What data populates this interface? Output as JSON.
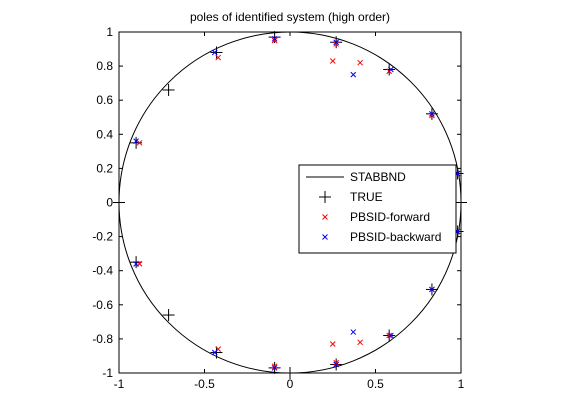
{
  "chart_data": {
    "type": "scatter",
    "title": "poles of identified system (high order)",
    "xlabel": "",
    "ylabel": "",
    "xlim": [
      -1,
      1
    ],
    "ylim": [
      -1,
      1
    ],
    "xticks": [
      -1,
      -0.5,
      0,
      0.5,
      1
    ],
    "xtick_labels": [
      "-1",
      "-0.5",
      "0",
      "0.5",
      "1"
    ],
    "yticks": [
      1,
      0.8,
      0.6,
      0.4,
      0.2,
      0,
      -0.2,
      -0.4,
      -0.6,
      -0.8,
      -1
    ],
    "ytick_labels": [
      "1",
      "0.8",
      "0.6",
      "0.4",
      "0.2",
      "0",
      "-0.2",
      "-0.4",
      "-0.6",
      "-0.8",
      "-1"
    ],
    "grid": false,
    "legend_position": "right",
    "series": [
      {
        "name": "STABBND",
        "kind": "line",
        "shape": "unit-circle",
        "color": "#000000"
      },
      {
        "name": "TRUE",
        "kind": "marker",
        "marker": "+",
        "color": "#000000",
        "points": [
          [
            1.0,
            0.0
          ],
          [
            -1.0,
            0.0
          ],
          [
            0.98,
            0.17
          ],
          [
            0.98,
            -0.17
          ],
          [
            0.83,
            0.52
          ],
          [
            0.83,
            -0.51
          ],
          [
            0.58,
            0.78
          ],
          [
            0.58,
            -0.78
          ],
          [
            0.27,
            0.94
          ],
          [
            0.27,
            -0.95
          ],
          [
            -0.09,
            0.97
          ],
          [
            -0.09,
            -0.97
          ],
          [
            -0.43,
            0.88
          ],
          [
            -0.43,
            -0.88
          ],
          [
            -0.71,
            0.66
          ],
          [
            -0.71,
            -0.66
          ],
          [
            -0.9,
            0.35
          ],
          [
            -0.9,
            -0.35
          ],
          [
            0.0,
            -1.0
          ]
        ]
      },
      {
        "name": "PBSID-forward",
        "kind": "marker",
        "marker": "x",
        "color": "#ff0000",
        "points": [
          [
            0.98,
            0.17
          ],
          [
            0.98,
            -0.17
          ],
          [
            0.83,
            0.51
          ],
          [
            0.83,
            -0.51
          ],
          [
            0.58,
            0.77
          ],
          [
            0.58,
            -0.78
          ],
          [
            0.41,
            0.82
          ],
          [
            0.41,
            -0.82
          ],
          [
            0.25,
            0.83
          ],
          [
            0.25,
            -0.83
          ],
          [
            0.27,
            0.93
          ],
          [
            0.27,
            -0.94
          ],
          [
            -0.09,
            0.95
          ],
          [
            -0.09,
            -0.96
          ],
          [
            -0.42,
            0.85
          ],
          [
            -0.42,
            -0.86
          ],
          [
            -0.88,
            0.35
          ],
          [
            -0.88,
            -0.36
          ]
        ]
      },
      {
        "name": "PBSID-backward",
        "kind": "marker",
        "marker": "x",
        "color": "#0000ff",
        "points": [
          [
            0.98,
            0.17
          ],
          [
            0.98,
            -0.17
          ],
          [
            0.83,
            0.52
          ],
          [
            0.83,
            -0.51
          ],
          [
            0.59,
            0.78
          ],
          [
            0.59,
            -0.78
          ],
          [
            0.37,
            0.75
          ],
          [
            0.37,
            -0.76
          ],
          [
            0.27,
            0.94
          ],
          [
            0.27,
            -0.95
          ],
          [
            -0.09,
            0.96
          ],
          [
            -0.09,
            -0.97
          ],
          [
            -0.44,
            0.88
          ],
          [
            -0.44,
            -0.88
          ],
          [
            -0.9,
            0.36
          ],
          [
            -0.9,
            -0.36
          ]
        ]
      }
    ]
  }
}
